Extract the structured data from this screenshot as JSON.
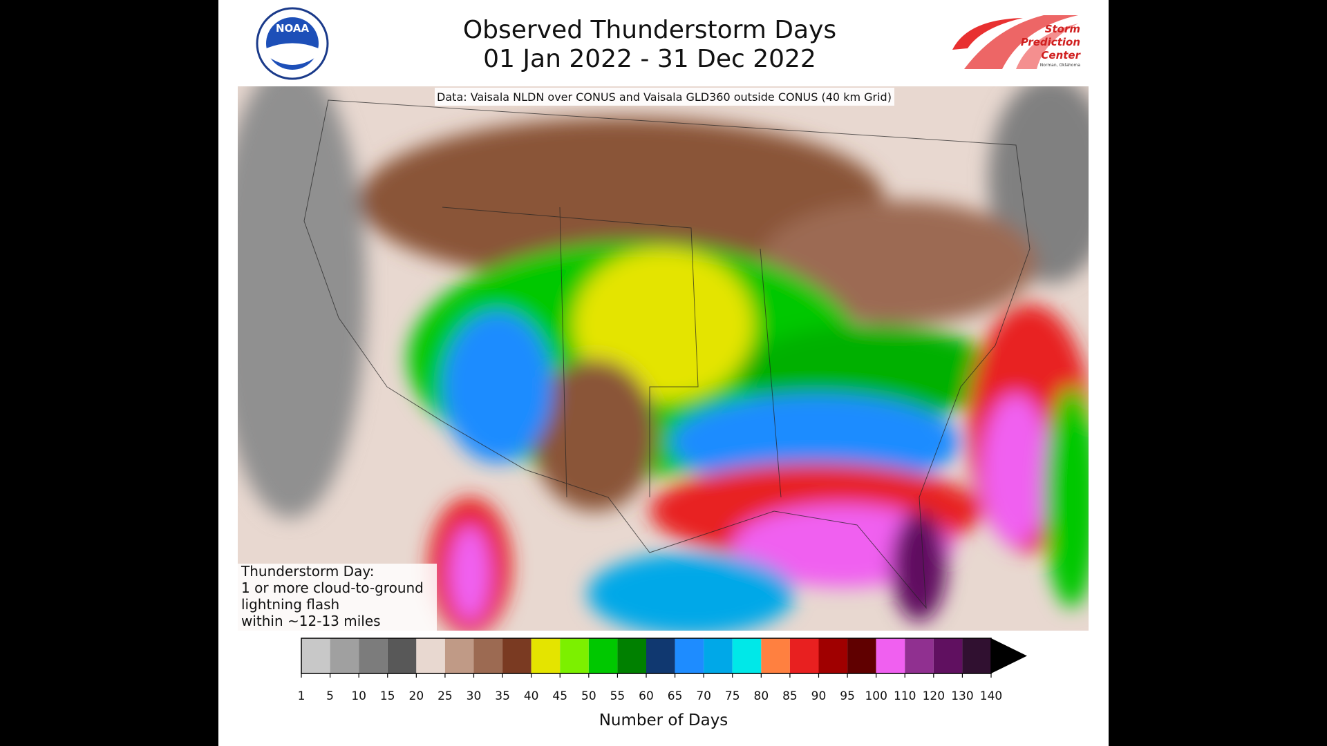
{
  "header": {
    "title_lines": [
      "Observed Thunderstorm Days",
      "01 Jan 2022 - 31 Dec 2022"
    ],
    "noaa_logo": "NOAA",
    "spc_logo": [
      "Storm",
      "Prediction",
      "Center"
    ],
    "spc_location": "Norman, Oklahoma"
  },
  "map": {
    "data_note": "Data: Vaisala NLDN over CONUS and Vaisala GLD360 outside CONUS (40 km Grid)",
    "definition_lines": [
      "Thunderstorm Day:",
      "1 or more cloud-to-ground",
      "lightning flash",
      "within ~12-13 miles"
    ]
  },
  "colorbar": {
    "ticks": [
      1,
      5,
      10,
      15,
      20,
      25,
      30,
      35,
      40,
      45,
      50,
      55,
      60,
      65,
      70,
      75,
      80,
      85,
      90,
      95,
      100,
      110,
      120,
      130,
      140
    ],
    "colors": [
      "#c8c8c8",
      "#a0a0a0",
      "#7c7c7c",
      "#585858",
      "#e8d8d0",
      "#c09a86",
      "#9c6a52",
      "#7a3a22",
      "#e4e400",
      "#7cf000",
      "#00c800",
      "#008000",
      "#103870",
      "#1e8cff",
      "#00a8e8",
      "#00e8e8",
      "#ff8040",
      "#e82020",
      "#a00000",
      "#600000",
      "#f060f0",
      "#903090",
      "#601060",
      "#301030"
    ],
    "extend_color": "#000000",
    "label": "Number of Days"
  }
}
